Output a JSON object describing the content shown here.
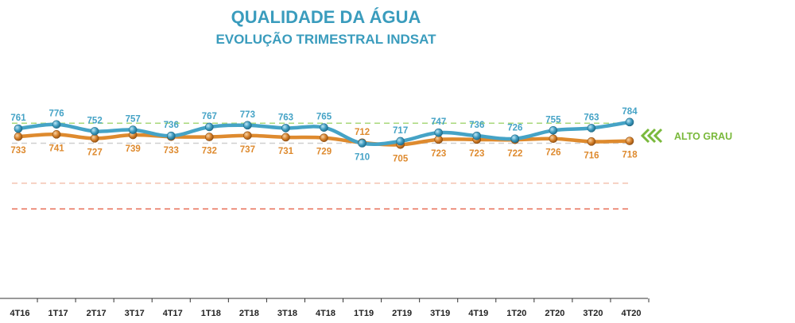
{
  "chart_data": {
    "type": "line",
    "title": "QUALIDADE DA ÁGUA",
    "subtitle": "EVOLUÇÃO TRIMESTRAL INDSAT",
    "categories": [
      "4T16",
      "1T17",
      "2T17",
      "3T17",
      "4T17",
      "1T18",
      "2T18",
      "3T18",
      "4T18",
      "1T19",
      "2T19",
      "3T19",
      "4T19",
      "1T20",
      "2T20",
      "3T20",
      "4T20"
    ],
    "series": [
      {
        "values": [
          761,
          776,
          752,
          757,
          736,
          767,
          773,
          763,
          765,
          710,
          717,
          747,
          736,
          726,
          755,
          763,
          784
        ],
        "color": "#45a3c6"
      },
      {
        "values": [
          733,
          741,
          727,
          739,
          733,
          732,
          737,
          731,
          729,
          712,
          705,
          723,
          723,
          722,
          726,
          716,
          718
        ],
        "color": "#de8a2e"
      }
    ],
    "reference_lines": [
      {
        "value": 780,
        "color": "#a8d87a"
      },
      {
        "value": 710,
        "color": "#cfcfcf"
      },
      {
        "value": 570,
        "color": "#f3c3b0"
      },
      {
        "value": 480,
        "color": "#e8705a"
      }
    ],
    "annotation": {
      "label": "ALTO GRAU",
      "color": "#7ab93c",
      "icon": "double-chevron-left-icon"
    },
    "grid": false,
    "legend": "none"
  }
}
